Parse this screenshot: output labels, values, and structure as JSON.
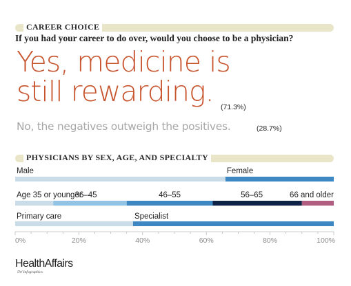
{
  "header": {
    "section_title": "CAREER CHOICE",
    "question": "If you had your career to do over, would you choose to be a physician?"
  },
  "answers": {
    "yes_line1": "Yes, medicine is",
    "yes_line2": "still rewarding.",
    "yes_pct": "(71.3%)",
    "no_text": "No, the negatives outweigh the positives.",
    "no_pct": "(28.7%)"
  },
  "colors": {
    "band": "#e9e5c8",
    "yes_text": "#c8542e",
    "no_text": "#a7a7a7",
    "seg_light": "#c9dce8",
    "seg_mid_light": "#92c3e4",
    "seg_blue": "#3d87c3",
    "seg_navy": "#0d2244",
    "seg_plum": "#b15d80"
  },
  "chart_data": {
    "type": "bar",
    "title": "PHYSICIANS BY SEX, AGE, AND SPECIALTY",
    "orientation": "horizontal-stacked-100",
    "xlim": [
      0,
      100
    ],
    "x_ticks": [
      "0%",
      "20%",
      "40%",
      "60%",
      "80%",
      "100%"
    ],
    "series": [
      {
        "row": "sex",
        "segments": [
          {
            "label": "Male",
            "value": 66,
            "color": "#c9dce8"
          },
          {
            "label": "Female",
            "value": 34,
            "color": "#3d87c3"
          }
        ]
      },
      {
        "row": "age",
        "segments": [
          {
            "label": "Age 35 or younger",
            "value": 12,
            "color": "#c9dce8"
          },
          {
            "label": "36–45",
            "value": 23,
            "color": "#92c3e4"
          },
          {
            "label": "46–55",
            "value": 27,
            "color": "#3d87c3"
          },
          {
            "label": "56–65",
            "value": 28,
            "color": "#0d2244"
          },
          {
            "label": "66 and older",
            "value": 10,
            "color": "#b15d80"
          }
        ]
      },
      {
        "row": "specialty",
        "segments": [
          {
            "label": "Primary care",
            "value": 37,
            "color": "#c9dce8"
          },
          {
            "label": "Specialist",
            "value": 63,
            "color": "#3d87c3"
          }
        ]
      }
    ]
  },
  "footer": {
    "logo": "HealthAffairs",
    "credit": "5W Infographics"
  }
}
